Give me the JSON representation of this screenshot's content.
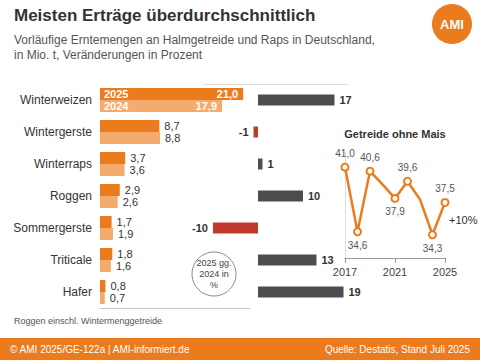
{
  "header": {
    "title": "Meisten Erträge überdurchschnittlich",
    "subtitle": [
      "Vorläufige Erntemengen an Halmgetreide und Raps in Deutschland,",
      "in Mio. t, Veränderungen in Prozent"
    ],
    "logo": "AMI"
  },
  "footer": {
    "left": "© AMI 2025/GE-122a | AMI-informiert.de",
    "right": "Quelle: Destatis, Stand Juli 2025"
  },
  "chart_data": [
    {
      "type": "bar",
      "orientation": "horizontal",
      "categories": [
        "Winterweizen",
        "Wintergerste",
        "Winterraps",
        "Roggen",
        "Sommergerste",
        "Triticale",
        "Hafer"
      ],
      "series": [
        {
          "name": "2025",
          "color": "#ec7b1e",
          "values": [
            21.0,
            8.7,
            3.7,
            2.9,
            1.7,
            1.8,
            0.8
          ],
          "value_labels": [
            "21,0",
            "8,7",
            "3,7",
            "2,9",
            "1,7",
            "1,8",
            "0,8"
          ]
        },
        {
          "name": "2024",
          "color": "#f5ab6e",
          "values": [
            17.9,
            8.8,
            3.6,
            2.6,
            1.9,
            1.6,
            0.7
          ],
          "value_labels": [
            "17,9",
            "8,8",
            "3,6",
            "2,6",
            "1,9",
            "1,6",
            "0,7"
          ]
        }
      ],
      "xlim": [
        0,
        22
      ],
      "data_labels": true,
      "tick_labels": "y",
      "grid": false,
      "note": "Roggen einschl. Wintermenggetreide"
    },
    {
      "type": "bar",
      "orientation": "horizontal",
      "categories": [
        "Winterweizen",
        "Wintergerste",
        "Winterraps",
        "Roggen",
        "Sommergerste",
        "Triticale",
        "Hafer"
      ],
      "values": [
        17,
        -1,
        1,
        10,
        -10,
        13,
        19
      ],
      "colors": [
        "#4d4d4d",
        "#c0392b",
        "#4d4d4d",
        "#4d4d4d",
        "#c0392b",
        "#4d4d4d",
        "#4d4d4d"
      ],
      "xlim": [
        -12,
        20
      ],
      "data_labels": true,
      "tick_labels": false,
      "grid": false,
      "annotation": [
        "2025 gg.",
        "2024 in",
        "%"
      ]
    },
    {
      "type": "line",
      "title": "Getreide ohne Mais",
      "x": [
        2017,
        2018,
        2019,
        2020,
        2021,
        2022,
        2023,
        2024,
        2025
      ],
      "values": [
        41.0,
        34.6,
        40.6,
        39.3,
        37.9,
        39.6,
        37.8,
        34.3,
        37.5
      ],
      "value_labels": [
        "41,0",
        "34,6",
        "40,6",
        null,
        "37,9",
        "39,6",
        null,
        "34,3",
        "37,5"
      ],
      "color": "#ec7b1e",
      "marker": "circle",
      "line_style": "solid",
      "xlim": [
        2017,
        2025
      ],
      "xticks": [
        2017,
        2021,
        2025
      ],
      "ylim": [
        32,
        42.5
      ],
      "data_labels": true,
      "tick_labels": "x",
      "grid": false,
      "annotation": "+10%"
    }
  ]
}
